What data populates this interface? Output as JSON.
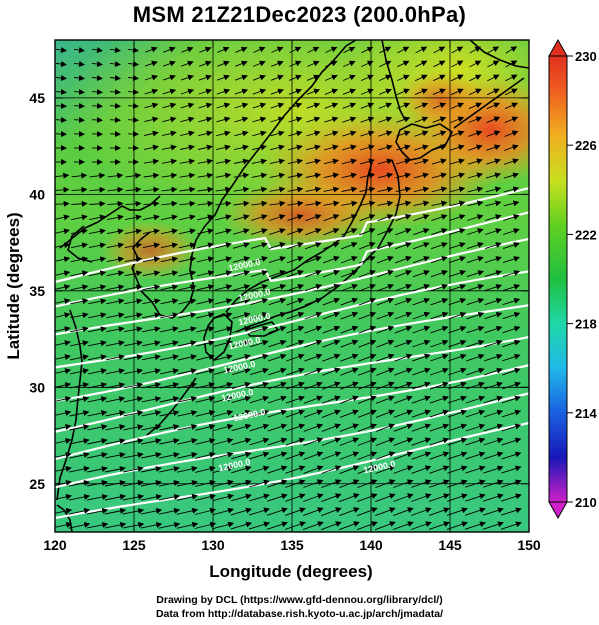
{
  "title": "MSM 21Z21Dec2023 (200.0hPa)",
  "x_axis": {
    "label": "Longitude (degrees)",
    "range": [
      120,
      150
    ],
    "ticks": [
      "120",
      "125",
      "130",
      "135",
      "140",
      "145",
      "150"
    ]
  },
  "y_axis": {
    "label": "Latitude  (degrees)",
    "range": [
      22.5,
      48
    ],
    "ticks": [
      "25",
      "30",
      "35",
      "40",
      "45"
    ]
  },
  "colorbar": {
    "range": [
      210,
      230
    ],
    "ticks": [
      "230",
      "226",
      "222",
      "218",
      "214",
      "210"
    ],
    "colors": [
      "#d020c8",
      "#1818b8",
      "#1a60e0",
      "#20c0e8",
      "#20d8a8",
      "#20c040",
      "#60d020",
      "#c8e020",
      "#f0b020",
      "#f06020",
      "#e03020"
    ]
  },
  "contour_labels": [
    "12000.0",
    "12000.0",
    "12000.0",
    "12000.0",
    "12000.0",
    "12000.0",
    "12000.0",
    "12000.0",
    "12000.0"
  ],
  "footer": {
    "line1": "Drawing by DCL (https://www.gfd-dennou.org/library/dcl/)",
    "line2": "Data from http://database.rish.kyoto-u.ac.jp/arch/jmadata/"
  },
  "colors": {
    "contour": "#ffffff",
    "coast": "#000000",
    "vector": "#000000"
  }
}
